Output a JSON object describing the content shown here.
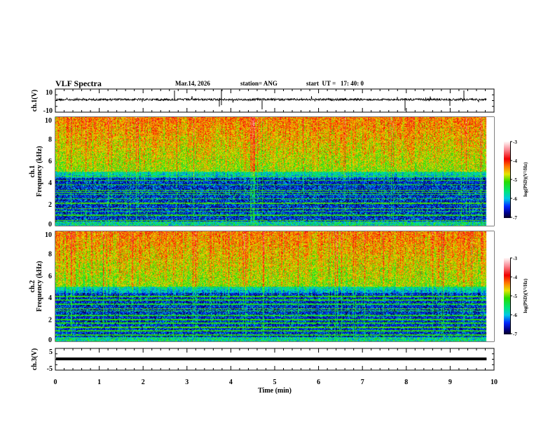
{
  "header": {
    "title": "VLF Spectra",
    "date": "Mar.14, 2026",
    "station": "station= ANG",
    "start_time": "start  UT =   17: 40: 0"
  },
  "chart_data": [
    {
      "type": "line",
      "name": "ch1-waveform",
      "ylabel": "ch.1(V)",
      "ylim": [
        -10,
        10
      ],
      "yticks": [
        "10",
        "-10"
      ],
      "xlim": [
        0,
        10
      ],
      "baseline": 0
    },
    {
      "type": "heatmap",
      "name": "ch1-spectrogram",
      "ylabel_top": "ch.1",
      "ylabel": "Frequency (kHz)",
      "ylim": [
        0,
        10
      ],
      "yticks": [
        "0",
        "2",
        "4",
        "6",
        "8",
        "10"
      ],
      "xlim": [
        0,
        10
      ],
      "colorbar": {
        "label": "log(PSD)(V²/Hz)",
        "range": [
          -7,
          -3
        ],
        "ticks": [
          "-3",
          "-4",
          "-5",
          "-6",
          "-7"
        ]
      }
    },
    {
      "type": "heatmap",
      "name": "ch2-spectrogram",
      "ylabel_top": "ch.2",
      "ylabel": "Frequency (kHz)",
      "ylim": [
        0,
        10
      ],
      "yticks": [
        "0",
        "2",
        "4",
        "6",
        "8",
        "10"
      ],
      "xlim": [
        0,
        10
      ],
      "colorbar": {
        "label": "log(PSD)(V²/Hz)",
        "range": [
          -7,
          -3
        ],
        "ticks": [
          "-3",
          "-4",
          "-5",
          "-6",
          "-7"
        ]
      }
    },
    {
      "type": "line",
      "name": "ch3-waveform",
      "ylabel": "ch.3(V)",
      "ylim": [
        -5,
        5
      ],
      "yticks": [
        "5",
        "-5"
      ],
      "xlim": [
        0,
        10
      ],
      "baseline": 0
    }
  ],
  "xaxis": {
    "label": "Time  (min)",
    "ticks": [
      "0",
      "1",
      "2",
      "3",
      "4",
      "5",
      "6",
      "7",
      "8",
      "9",
      "10"
    ],
    "data_end": 9.83
  }
}
